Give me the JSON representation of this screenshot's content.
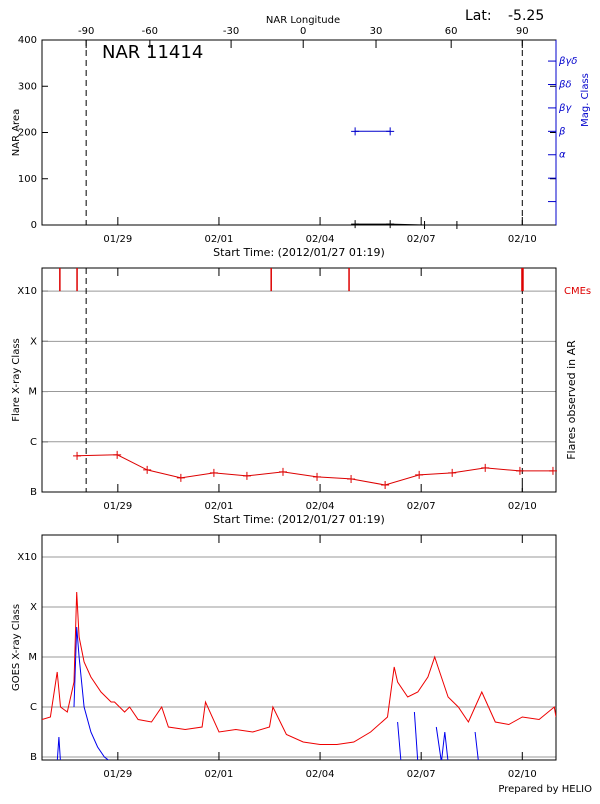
{
  "chart_data": [
    {
      "type": "line",
      "title": "NAR 11414",
      "lat_label": "Lat:",
      "lat_value": -5.25,
      "top_axis_label": "NAR Longitude",
      "top_ticks": [
        {
          "value": -90,
          "day": 28.06
        },
        {
          "value": -60,
          "day": 29.95
        },
        {
          "value": -30,
          "day": 32.36
        },
        {
          "value": 0,
          "day": 34.5
        },
        {
          "value": 30,
          "day": 36.66
        },
        {
          "value": 60,
          "day": 38.89
        },
        {
          "value": 90,
          "day": 41.0
        }
      ],
      "x_label": "Start Time: (2012/01/27 01:19)",
      "y_label": "NAR Area",
      "y2_label": "Mag. Class",
      "xlim": [
        26.75,
        42.0
      ],
      "xticks": [
        {
          "value": 29,
          "label": "01/29"
        },
        {
          "value": 32,
          "label": "02/01"
        },
        {
          "value": 35,
          "label": "02/04"
        },
        {
          "value": 38,
          "label": "02/07"
        },
        {
          "value": 41,
          "label": "02/10"
        }
      ],
      "ylim": [
        0,
        400
      ],
      "yticks": [
        0,
        100,
        200,
        300,
        400
      ],
      "y2lim": [
        0,
        7.9
      ],
      "y2minor": [
        1,
        2
      ],
      "y2ticks": [
        {
          "value": 3,
          "label": "α"
        },
        {
          "value": 4,
          "label": "β"
        },
        {
          "value": 5,
          "label": "βγ"
        },
        {
          "value": 6,
          "label": "βδ"
        },
        {
          "value": 7,
          "label": "βγδ"
        }
      ],
      "limb_lines": [
        28.06,
        41.0
      ],
      "series": [
        {
          "color": "#000000",
          "x": [
            36.04,
            37.08,
            38.1,
            39.06
          ],
          "values": [
            2,
            2,
            0,
            0
          ]
        },
        {
          "color": "#0000cc",
          "axis": "y2",
          "x": [
            36.04,
            37.08
          ],
          "values": [
            4,
            4
          ]
        }
      ]
    },
    {
      "type": "line",
      "x_label": "Start Time: (2012/01/27 01:19)",
      "y_label": "Flare X-ray Class",
      "y2_label": "Flares observed in AR",
      "xlim": [
        26.75,
        42.0
      ],
      "xticks": [
        {
          "value": 29,
          "label": "01/29"
        },
        {
          "value": 32,
          "label": "02/01"
        },
        {
          "value": 35,
          "label": "02/04"
        },
        {
          "value": 38,
          "label": "02/07"
        },
        {
          "value": 41,
          "label": "02/10"
        }
      ],
      "ylim": [
        0,
        4.46
      ],
      "yticks": [
        {
          "value": 0,
          "label": "B"
        },
        {
          "value": 1,
          "label": "C"
        },
        {
          "value": 2,
          "label": "M"
        },
        {
          "value": 3,
          "label": "X"
        },
        {
          "value": 4,
          "label": "X10"
        }
      ],
      "grid": true,
      "limb_lines": [
        28.06,
        41.0
      ],
      "cme_label": "CMEs",
      "cme_color": "#dd0000",
      "cme_days": [
        27.28,
        27.79,
        33.55,
        35.86,
        40.99,
        41.02
      ],
      "series": [
        {
          "color": "#dd0000",
          "x": [
            27.79,
            28.98,
            29.87,
            30.87,
            31.85,
            32.83,
            33.9,
            34.91,
            35.92,
            36.93,
            37.94,
            38.92,
            39.9,
            40.93,
            41.91
          ],
          "values": [
            0.72,
            0.74,
            0.44,
            0.28,
            0.38,
            0.32,
            0.4,
            0.3,
            0.26,
            0.14,
            0.34,
            0.38,
            0.48,
            0.42,
            0.42
          ]
        }
      ]
    },
    {
      "type": "line",
      "y_label": "GOES X-ray Class",
      "xlim": [
        26.75,
        42.0
      ],
      "xticks": [
        {
          "value": 29,
          "label": "01/29"
        },
        {
          "value": 32,
          "label": "02/01"
        },
        {
          "value": 35,
          "label": "02/04"
        },
        {
          "value": 38,
          "label": "02/07"
        },
        {
          "value": 41,
          "label": "02/10"
        }
      ],
      "ylim": [
        -0.06,
        4.44
      ],
      "yticks": [
        {
          "value": 0,
          "label": "B"
        },
        {
          "value": 1,
          "label": "C"
        },
        {
          "value": 2,
          "label": "M"
        },
        {
          "value": 3,
          "label": "X"
        },
        {
          "value": 4,
          "label": "X10"
        }
      ],
      "grid": true,
      "series": [
        {
          "color": "#ee0000",
          "x": [
            26.75,
            27.0,
            27.2,
            27.3,
            27.5,
            27.7,
            27.78,
            27.85,
            28.0,
            28.2,
            28.5,
            28.8,
            28.9,
            29.2,
            29.35,
            29.6,
            30.0,
            30.3,
            30.5,
            31.0,
            31.5,
            31.6,
            32.0,
            32.5,
            33.0,
            33.5,
            33.6,
            34.0,
            34.5,
            35.0,
            35.5,
            36.0,
            36.5,
            37.0,
            37.2,
            37.3,
            37.6,
            37.9,
            38.2,
            38.4,
            38.5,
            38.8,
            39.1,
            39.4,
            39.8,
            40.2,
            40.6,
            41.0,
            41.5,
            41.95,
            42.0
          ],
          "values": [
            0.75,
            0.8,
            1.7,
            1.0,
            0.9,
            1.5,
            3.3,
            2.4,
            1.9,
            1.6,
            1.3,
            1.1,
            1.1,
            0.9,
            1.0,
            0.75,
            0.7,
            1.0,
            0.6,
            0.55,
            0.6,
            1.1,
            0.5,
            0.55,
            0.5,
            0.6,
            1.0,
            0.45,
            0.3,
            0.25,
            0.25,
            0.3,
            0.5,
            0.8,
            1.8,
            1.5,
            1.2,
            1.3,
            1.6,
            2.0,
            1.8,
            1.2,
            1.0,
            0.7,
            1.3,
            0.7,
            0.65,
            0.8,
            0.75,
            1.0,
            0.8
          ]
        },
        {
          "color": "#0000ee",
          "x": [
            27.2,
            27.25,
            27.3,
            27.6,
            27.7,
            27.78,
            27.85,
            28.0,
            28.2,
            28.4,
            28.6,
            28.8,
            37.2,
            37.3,
            37.4,
            37.7,
            37.8,
            37.9,
            38.3,
            38.45,
            38.6,
            38.7,
            38.8,
            39.5,
            39.6,
            39.7
          ],
          "values": [
            -0.1,
            0.4,
            -0.1,
            null,
            1.0,
            2.6,
            2.0,
            1.0,
            0.5,
            0.2,
            0.0,
            -0.1,
            null,
            0.7,
            -0.1,
            null,
            0.9,
            -0.1,
            null,
            0.6,
            -0.1,
            0.5,
            -0.1,
            null,
            0.5,
            -0.1
          ]
        }
      ]
    }
  ],
  "footer": "Prepared by HELIO"
}
